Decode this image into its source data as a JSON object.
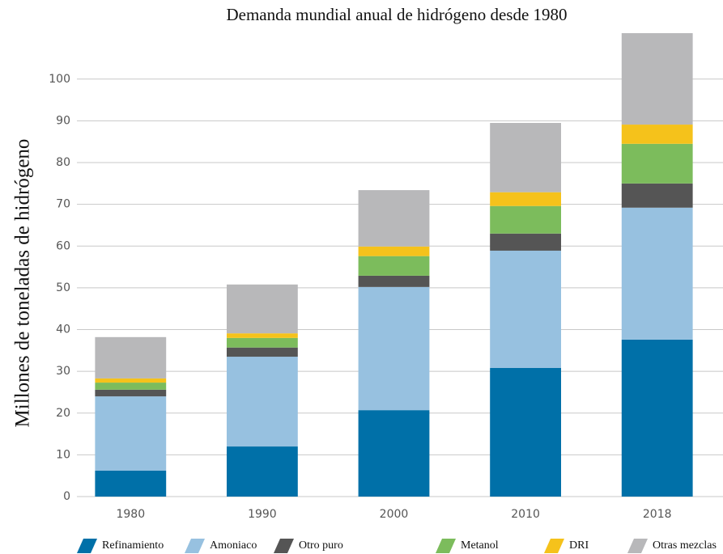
{
  "chart_data": {
    "type": "stacked_bar",
    "title": "Demanda mundial anual de hidrógeno desde 1980",
    "y_label": "Millones de toneladas de hidrógeno",
    "categories": [
      "1980",
      "1990",
      "2000",
      "2010",
      "2018"
    ],
    "series": [
      {
        "name": "Refinamiento",
        "color": "#0070a8",
        "values": [
          6.2,
          12.0,
          20.7,
          30.8,
          37.6
        ]
      },
      {
        "name": "Amoniaco",
        "color": "#97c1e0",
        "values": [
          17.8,
          21.5,
          29.5,
          28.1,
          31.6
        ]
      },
      {
        "name": "Otro puro",
        "color": "#555555",
        "values": [
          1.6,
          2.2,
          2.7,
          4.1,
          5.8
        ]
      },
      {
        "name": "Metanol",
        "color": "#7cbc5c",
        "values": [
          1.7,
          2.3,
          4.7,
          6.6,
          9.5
        ]
      },
      {
        "name": "DRI",
        "color": "#f5c21b",
        "values": [
          1.0,
          1.1,
          2.3,
          3.3,
          4.6
        ]
      },
      {
        "name": "Otras mezclas",
        "color": "#b8b8ba",
        "values": [
          9.9,
          11.7,
          13.5,
          16.6,
          21.9
        ]
      }
    ],
    "ylim": [
      0,
      111
    ],
    "yticks": [
      0,
      10,
      20,
      30,
      40,
      50,
      60,
      70,
      80,
      90,
      100
    ],
    "grid": true
  }
}
